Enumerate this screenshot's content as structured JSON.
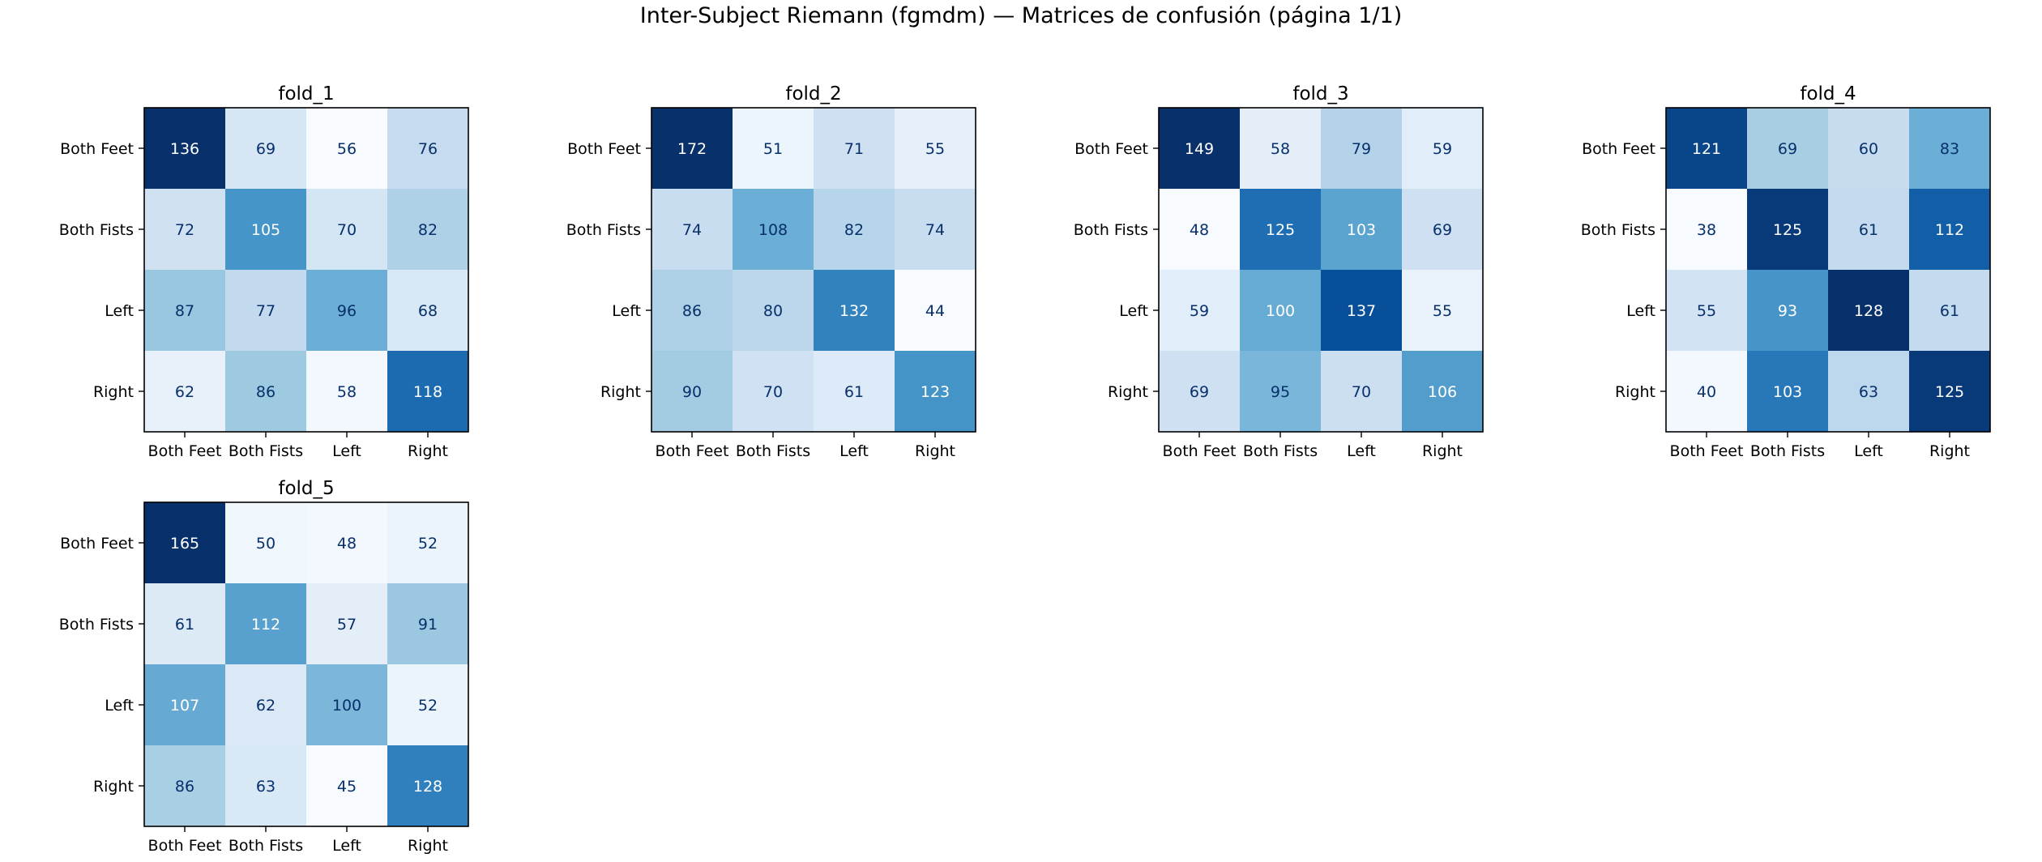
{
  "chart_data": {
    "type": "heatmap",
    "title": "Inter-Subject Riemann (fgmdm) — Matrices de confusión (página 1/1)",
    "colormap": "Blues",
    "text_colors": {
      "dark_cell": "#ffffff",
      "light_cell": "#08306b"
    },
    "class_labels": [
      "Both Feet",
      "Both Fists",
      "Left",
      "Right"
    ],
    "panels": [
      {
        "title": "fold_1",
        "matrix": [
          [
            136,
            69,
            56,
            76
          ],
          [
            72,
            105,
            70,
            82
          ],
          [
            87,
            77,
            96,
            68
          ],
          [
            62,
            86,
            58,
            118
          ]
        ]
      },
      {
        "title": "fold_2",
        "matrix": [
          [
            172,
            51,
            71,
            55
          ],
          [
            74,
            108,
            82,
            74
          ],
          [
            86,
            80,
            132,
            44
          ],
          [
            90,
            70,
            61,
            123
          ]
        ]
      },
      {
        "title": "fold_3",
        "matrix": [
          [
            149,
            58,
            79,
            59
          ],
          [
            48,
            125,
            103,
            69
          ],
          [
            59,
            100,
            137,
            55
          ],
          [
            69,
            95,
            70,
            106
          ]
        ]
      },
      {
        "title": "fold_4",
        "matrix": [
          [
            121,
            69,
            60,
            83
          ],
          [
            38,
            125,
            61,
            112
          ],
          [
            55,
            93,
            128,
            61
          ],
          [
            40,
            103,
            63,
            125
          ]
        ]
      },
      {
        "title": "fold_5",
        "matrix": [
          [
            165,
            50,
            48,
            52
          ],
          [
            61,
            112,
            57,
            91
          ],
          [
            107,
            62,
            100,
            52
          ],
          [
            86,
            63,
            45,
            128
          ]
        ]
      }
    ]
  }
}
